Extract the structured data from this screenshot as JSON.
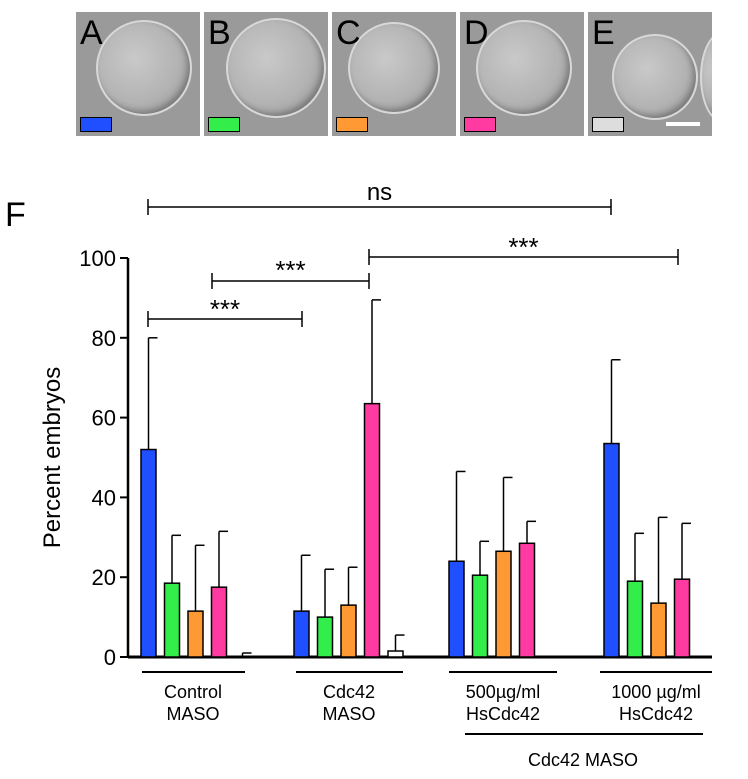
{
  "panels": [
    {
      "letter": "A",
      "swatch_color": "#1f4fff"
    },
    {
      "letter": "B",
      "swatch_color": "#33ee4a"
    },
    {
      "letter": "C",
      "swatch_color": "#ff9933"
    },
    {
      "letter": "D",
      "swatch_color": "#ff3aa0"
    },
    {
      "letter": "E",
      "swatch_color": "#dddddd"
    }
  ],
  "chart_data": {
    "type": "bar",
    "panel_label": "F",
    "ylabel": "Percent embryos",
    "ylim": [
      0,
      100
    ],
    "yticks": [
      "0",
      "20",
      "40",
      "60",
      "80",
      "100"
    ],
    "categories": [
      "Control\nMASO",
      "Cdc42\nMASO",
      "500µg/ml\nHsCdc42",
      "1000 µg/ml\nHsCdc42"
    ],
    "group_label": "Cdc42 MASO",
    "series_colors": [
      "#1f4fff",
      "#33ee4a",
      "#ff9933",
      "#ff3aa0",
      "#ffffff"
    ],
    "series": [
      {
        "values": [
          52,
          11.5,
          24,
          53.5
        ],
        "errors": [
          28,
          14,
          22.5,
          21
        ]
      },
      {
        "values": [
          18.5,
          10,
          20.5,
          19
        ],
        "errors": [
          12,
          12,
          8.5,
          12
        ]
      },
      {
        "values": [
          11.5,
          13,
          26.5,
          13.5
        ],
        "errors": [
          16.5,
          9.5,
          18.5,
          21.5
        ]
      },
      {
        "values": [
          17.5,
          63.5,
          28.5,
          19.5
        ],
        "errors": [
          14,
          26,
          5.5,
          14
        ]
      },
      {
        "values": [
          0,
          1.5,
          null,
          null
        ],
        "errors": [
          1,
          4,
          null,
          null
        ]
      }
    ],
    "significance": [
      {
        "label": "ns",
        "from_category": 0,
        "to_category": 3
      },
      {
        "label": "***",
        "from_category": 1,
        "to_category": 3
      },
      {
        "label": "***",
        "from_category": 0,
        "to_category": 1
      },
      {
        "label": "***",
        "from_category": 0,
        "to_category": 1
      }
    ]
  }
}
